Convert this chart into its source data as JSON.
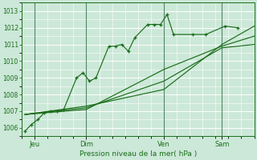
{
  "title": "Pression niveau de la mer( hPa )",
  "bg_color": "#cce8d8",
  "grid_color": "#b0d4c0",
  "line_color": "#1a6e1a",
  "ylim": [
    1005.5,
    1013.5
  ],
  "yticks": [
    1006,
    1007,
    1008,
    1009,
    1010,
    1011,
    1012,
    1013
  ],
  "day_labels": [
    "Jeu",
    "Dim",
    "Ven",
    "Sam"
  ],
  "day_positions": [
    4,
    20,
    44,
    62
  ],
  "xlim": [
    0,
    72
  ],
  "series1_x": [
    1,
    3,
    5,
    7,
    9,
    11,
    13,
    17,
    19,
    21,
    23,
    27,
    29,
    31,
    33,
    35,
    39,
    41,
    43,
    45,
    47,
    53,
    57,
    63,
    67
  ],
  "series1_y": [
    1005.8,
    1006.2,
    1006.5,
    1006.9,
    1007.0,
    1007.0,
    1007.1,
    1009.0,
    1009.3,
    1008.8,
    1009.0,
    1010.9,
    1010.9,
    1011.0,
    1010.6,
    1011.4,
    1012.2,
    1012.2,
    1012.2,
    1012.8,
    1011.6,
    1011.6,
    1011.6,
    1012.1,
    1012.0
  ],
  "series2_x": [
    1,
    20,
    44,
    62,
    72
  ],
  "series2_y": [
    1006.8,
    1007.2,
    1008.8,
    1010.8,
    1011.0
  ],
  "series3_x": [
    1,
    20,
    44,
    62,
    72
  ],
  "series3_y": [
    1006.8,
    1007.1,
    1009.5,
    1010.9,
    1011.5
  ],
  "series4_x": [
    1,
    20,
    44,
    62,
    72
  ],
  "series4_y": [
    1006.8,
    1007.3,
    1008.3,
    1011.0,
    1012.1
  ],
  "vline_positions": [
    4,
    20,
    44,
    62
  ],
  "vline_color": "#558866"
}
